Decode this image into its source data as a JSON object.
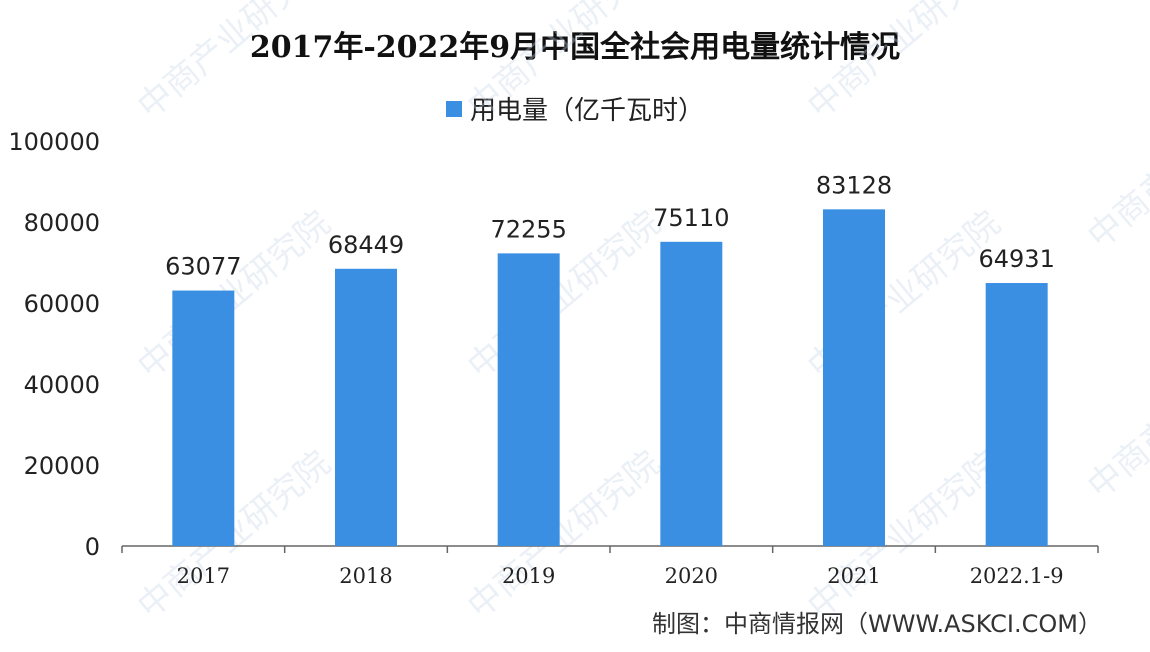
{
  "colors": {
    "bar": "#3b8fe3",
    "axis": "#666666",
    "text": "#222222"
  },
  "chart_data": {
    "type": "bar",
    "title": "2017年-2022年9月中国全社会用电量统计情况",
    "legend": "用电量（亿千瓦时）",
    "categories": [
      "2017",
      "2018",
      "2019",
      "2020",
      "2021",
      "2022.1-9"
    ],
    "series": [
      {
        "name": "用电量（亿千瓦时）",
        "values": [
          63077,
          68449,
          72255,
          75110,
          83128,
          64931
        ]
      }
    ],
    "ylim": [
      0,
      100000
    ],
    "yticks": [
      "0",
      "20000",
      "40000",
      "60000",
      "80000",
      "100000"
    ],
    "grid": false,
    "legend_position": "top"
  },
  "source": "制图：中商情报网（WWW.ASKCI.COM）",
  "watermark": "中商产业研究院"
}
